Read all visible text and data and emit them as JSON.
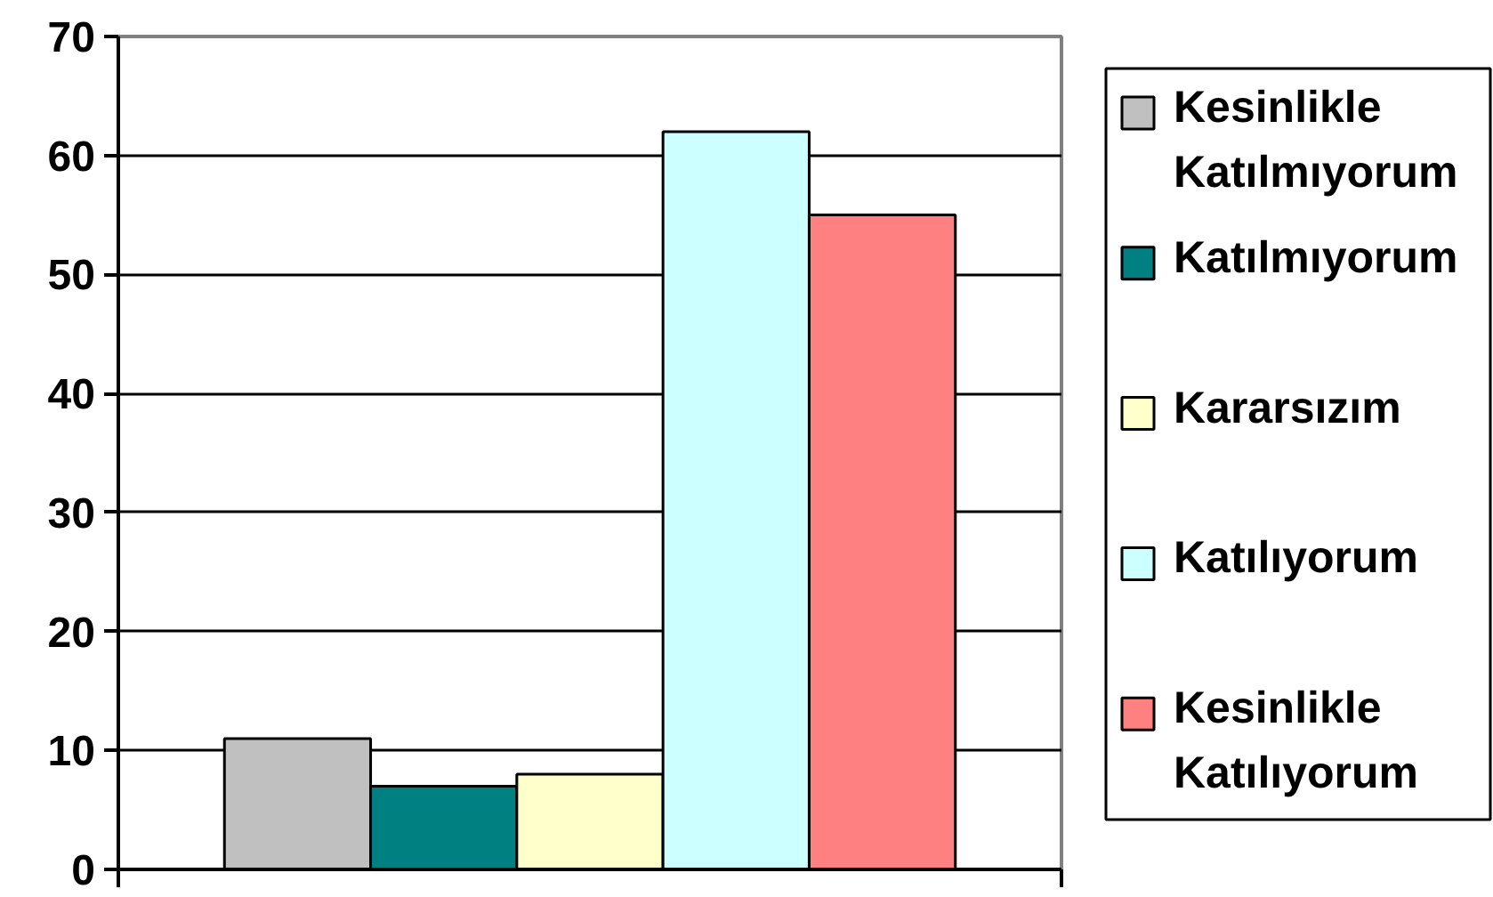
{
  "chart_data": {
    "type": "bar",
    "categories": [
      null
    ],
    "series": [
      {
        "name": "Kesinlikle Katılmıyorum",
        "color": "#c0c0c0",
        "values": [
          11
        ]
      },
      {
        "name": "Katılmıyorum",
        "color": "#008080",
        "values": [
          7
        ]
      },
      {
        "name": "Kararsızım",
        "color": "#ffffcc",
        "values": [
          8
        ]
      },
      {
        "name": "Katılıyorum",
        "color": "#ccffff",
        "values": [
          62
        ]
      },
      {
        "name": "Kesinlikle Katılıyorum",
        "color": "#ff8080",
        "values": [
          55
        ]
      }
    ],
    "ylim": [
      0,
      70
    ],
    "yticks": [
      0,
      10,
      20,
      30,
      40,
      50,
      60,
      70
    ],
    "grid": "y",
    "legend": "right",
    "tick_labels": "y"
  }
}
